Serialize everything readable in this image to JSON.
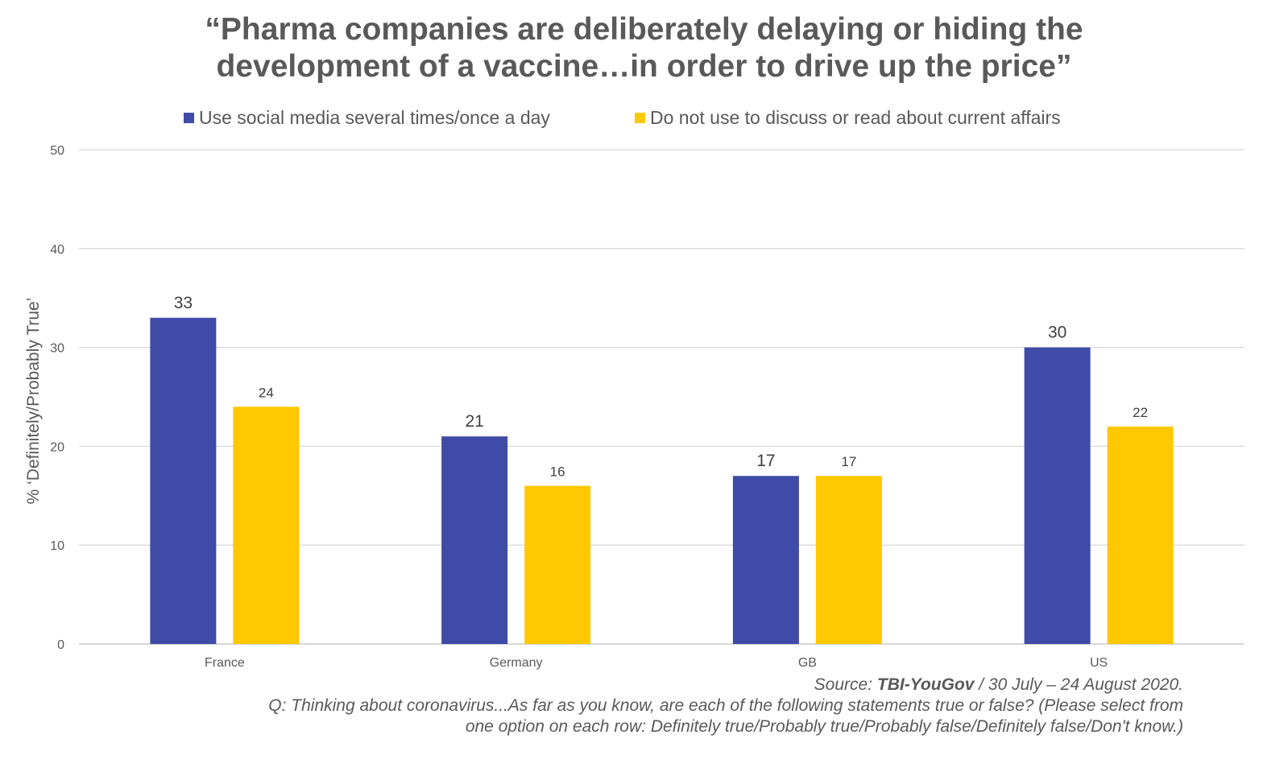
{
  "chart_data": {
    "type": "bar",
    "title": [
      "“Pharma companies are deliberately delaying or hiding the",
      "development of a vaccine…in order to drive up the price”"
    ],
    "categories": [
      "France",
      "Germany",
      "GB",
      "US"
    ],
    "series": [
      {
        "name": "Use social media several times/once a day",
        "color": "#3F4BA6",
        "values": [
          33,
          21,
          17,
          30
        ],
        "labels": [
          "33",
          "21",
          "17",
          "30"
        ]
      },
      {
        "name": "Do not use to discuss or read about current affairs",
        "color": "#FFC800",
        "values": [
          24,
          16,
          17,
          22
        ],
        "labels": [
          "24",
          "16",
          "17",
          "22"
        ]
      }
    ],
    "ylabel": "% ‘Definitely/Probably True’",
    "xlabel": "",
    "ylim": [
      0,
      50
    ],
    "yticks": [
      "0",
      "10",
      "20",
      "30",
      "40",
      "50"
    ],
    "grid": true,
    "legend_position": "top"
  },
  "source": {
    "prefix": "Source: ",
    "name": "TBI-YouGov",
    "suffix": " / 30 July – 24 August 2020.",
    "question_line1": "Q: Thinking about coronavirus...As far as you know, are each of the following statements true or false? (Please select from",
    "question_line2": "one option on each row: Definitely true/Probably true/Probably false/Definitely false/Don't know.)"
  }
}
